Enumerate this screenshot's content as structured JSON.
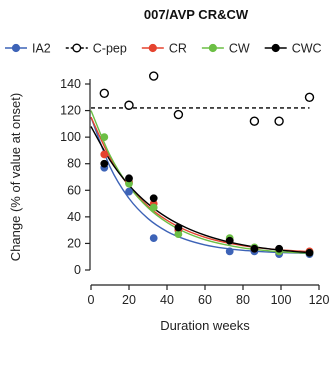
{
  "chart_data": {
    "type": "scatter",
    "title": "007/AVP CR&CW",
    "xlabel": "Duration weeks",
    "ylabel": "Change (% of value at onset)",
    "xlim": [
      0,
      120
    ],
    "ylim": [
      0,
      140
    ],
    "xticks": [
      0,
      20,
      40,
      60,
      80,
      100,
      120
    ],
    "yticks": [
      0,
      20,
      40,
      60,
      80,
      100,
      120,
      140
    ],
    "grid": false,
    "legend": "top",
    "series": [
      {
        "name": "IA2",
        "color": "#3d63b7",
        "marker": "filled-circle",
        "line": "solid",
        "points": [
          [
            7,
            77
          ],
          [
            20,
            59
          ],
          [
            33,
            24
          ],
          [
            46,
            30
          ],
          [
            73,
            14
          ],
          [
            86,
            14
          ],
          [
            99,
            12
          ],
          [
            115,
            12
          ]
        ],
        "fit": [
          [
            0,
            115
          ],
          [
            10,
            77.7
          ],
          [
            20,
            53.9
          ],
          [
            30,
            38.7
          ],
          [
            40,
            29.0
          ],
          [
            50,
            22.9
          ],
          [
            60,
            18.9
          ],
          [
            70,
            16.4
          ],
          [
            80,
            14.8
          ],
          [
            90,
            13.8
          ],
          [
            100,
            13.1
          ],
          [
            110,
            12.7
          ],
          [
            115,
            12.6
          ]
        ]
      },
      {
        "name": "C-pep",
        "color": "#000000",
        "marker": "open-circle",
        "line": "dashed",
        "points": [
          [
            7,
            133
          ],
          [
            20,
            124
          ],
          [
            33,
            146
          ],
          [
            46,
            117
          ],
          [
            86,
            112
          ],
          [
            99,
            112
          ],
          [
            115,
            130
          ]
        ],
        "fit": [
          [
            0,
            122
          ],
          [
            115,
            122
          ]
        ]
      },
      {
        "name": "CR",
        "color": "#e5432f",
        "marker": "filled-circle",
        "line": "solid",
        "points": [
          [
            7,
            87
          ],
          [
            20,
            66
          ],
          [
            33,
            50
          ],
          [
            46,
            30
          ],
          [
            73,
            22
          ],
          [
            86,
            16
          ],
          [
            99,
            14
          ],
          [
            115,
            14
          ]
        ],
        "fit": [
          [
            0,
            115
          ],
          [
            10,
            84.6
          ],
          [
            20,
            63.1
          ],
          [
            30,
            48.0
          ],
          [
            40,
            37.4
          ],
          [
            50,
            29.9
          ],
          [
            60,
            24.6
          ],
          [
            70,
            20.9
          ],
          [
            80,
            18.3
          ],
          [
            90,
            16.4
          ],
          [
            100,
            15.1
          ],
          [
            110,
            14.2
          ],
          [
            115,
            13.8
          ]
        ]
      },
      {
        "name": "CW",
        "color": "#6cbf45",
        "marker": "filled-circle",
        "line": "solid",
        "points": [
          [
            7,
            100
          ],
          [
            20,
            65
          ],
          [
            33,
            47
          ],
          [
            46,
            27
          ],
          [
            73,
            24
          ],
          [
            86,
            17
          ],
          [
            99,
            14
          ],
          [
            115,
            13
          ]
        ],
        "fit": [
          [
            0,
            120
          ],
          [
            10,
            86.3
          ],
          [
            20,
            63.0
          ],
          [
            30,
            46.9
          ],
          [
            40,
            35.8
          ],
          [
            50,
            28.1
          ],
          [
            60,
            22.8
          ],
          [
            70,
            19.2
          ],
          [
            80,
            16.6
          ],
          [
            90,
            14.9
          ],
          [
            100,
            13.7
          ],
          [
            110,
            12.9
          ],
          [
            115,
            12.5
          ]
        ]
      },
      {
        "name": "CWC",
        "color": "#000000",
        "marker": "filled-circle",
        "line": "solid",
        "points": [
          [
            7,
            80
          ],
          [
            20,
            69
          ],
          [
            33,
            54
          ],
          [
            46,
            32
          ],
          [
            73,
            22
          ],
          [
            86,
            16
          ],
          [
            99,
            16
          ],
          [
            115,
            13
          ]
        ],
        "fit": [
          [
            0,
            108
          ],
          [
            10,
            82.6
          ],
          [
            20,
            63.8
          ],
          [
            30,
            49.8
          ],
          [
            40,
            39.5
          ],
          [
            50,
            31.9
          ],
          [
            60,
            26.2
          ],
          [
            70,
            22.0
          ],
          [
            80,
            18.9
          ],
          [
            90,
            16.6
          ],
          [
            100,
            14.9
          ],
          [
            110,
            13.6
          ],
          [
            115,
            13.1
          ]
        ]
      }
    ]
  }
}
